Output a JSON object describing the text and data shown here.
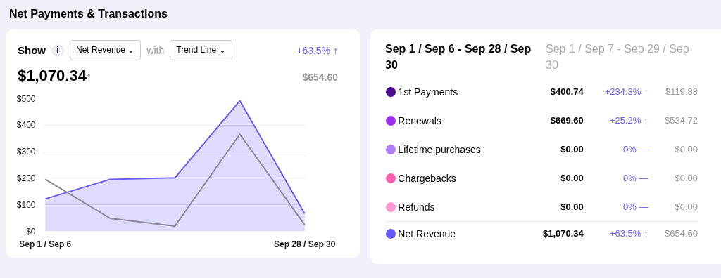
{
  "chart_data": [
    {
      "type": "line",
      "title": "Net Payments & Transactions",
      "annotations": [
        "Show",
        "i",
        "Net Revenue ⌄",
        "with",
        "Trend Line ⌄",
        "+63.5% ↑",
        "$1,070.34",
        "*",
        "$654.60"
      ],
      "categories": [
        "Sep 1 / Sep 6",
        null,
        null,
        null,
        "Sep 28 / Sep 30"
      ],
      "ylim": [
        0,
        500
      ],
      "yticks": [
        {
          "value": 0,
          "label": "$0"
        },
        {
          "value": 100,
          "label": "$100"
        },
        {
          "value": 200,
          "label": "$200"
        },
        {
          "value": 300,
          "label": "$300"
        },
        {
          "value": 400,
          "label": "$400"
        },
        {
          "value": 500,
          "label": "$500"
        }
      ],
      "grid": "y",
      "marker": "none",
      "line_style": "solid",
      "series": [
        {
          "type": "area",
          "color": "#6b5cf6",
          "values": [
            122,
            196,
            202,
            492,
            67
          ]
        },
        {
          "type": "line",
          "color": "#8e8a9c",
          "values": [
            196,
            49,
            20,
            366,
            25
          ]
        }
      ]
    },
    {
      "type": "other",
      "categories": [
        "1st Payments",
        "Renewals",
        "Lifetime purchases",
        "Chargebacks",
        "Refunds",
        "Net Revenue"
      ],
      "colors": [
        "#4b0e8e",
        "#9b30f0",
        "#b07ff5",
        "#ff5fae",
        "#ff9ad0",
        "#6259ff"
      ],
      "annotations": [
        "Sep 1 / Sep 6 - Sep 28 / Sep 30",
        "Sep 1 / Sep 7 - Sep 29 / Sep 30",
        "$400.74",
        "+234.3% ↑",
        "$119.88",
        "$669.60",
        "+25.2% ↑",
        "$534.72",
        "$0.00",
        "0% —",
        "$0.00",
        "$0.00",
        "0% —",
        "$0.00",
        "$0.00",
        "0% —",
        "$0.00",
        "$1,070.34",
        "+63.5% ↑",
        "$654.60"
      ]
    }
  ]
}
